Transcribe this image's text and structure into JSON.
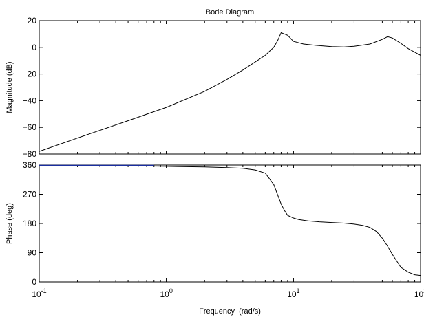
{
  "chart_data": [
    {
      "type": "line",
      "title": "Bode Diagram",
      "xlabel": "",
      "ylabel": "Magnitude (dB)",
      "xscale": "log",
      "xlim": [
        0.1,
        100
      ],
      "ylim": [
        -80,
        20
      ],
      "yticks": [
        20,
        0,
        -20,
        -40,
        -60,
        -80
      ],
      "ytick_labels": [
        "20",
        "0",
        "−20",
        "−40",
        "−60",
        "−80"
      ],
      "grid": false,
      "series": [
        {
          "color": "#000000",
          "x": [
            0.1,
            0.2,
            0.5,
            1,
            2,
            3,
            4,
            5,
            6,
            7,
            7.5,
            8,
            9,
            10,
            12,
            15,
            20,
            25,
            30,
            40,
            50,
            55,
            60,
            70,
            80,
            100
          ],
          "y": [
            -78,
            -68,
            -55,
            -45,
            -33,
            -24,
            -17,
            -11,
            -6,
            0,
            5,
            11,
            9,
            4.5,
            2.5,
            1.5,
            0.5,
            0.3,
            0.8,
            2.5,
            6,
            8,
            7,
            3,
            -1,
            -6
          ]
        }
      ]
    },
    {
      "type": "line",
      "title": "",
      "xlabel": "Frequency  (rad/s)",
      "ylabel": "Phase (deg)",
      "xscale": "log",
      "xlim": [
        0.1,
        100
      ],
      "ylim": [
        0,
        360
      ],
      "yticks": [
        360,
        270,
        180,
        90,
        0
      ],
      "ytick_labels": [
        "360",
        "270",
        "180",
        "90",
        "0"
      ],
      "xticks": [
        0.1,
        1,
        10,
        100
      ],
      "xtick_labels": [
        {
          "base": "10",
          "exp": "-1"
        },
        {
          "base": "10",
          "exp": "0"
        },
        {
          "base": "10",
          "exp": "1"
        },
        {
          "base": "10",
          "exp": "2"
        }
      ],
      "grid": false,
      "series": [
        {
          "color": "#000000",
          "x": [
            0.1,
            0.2,
            0.5,
            1,
            2,
            3,
            4,
            5,
            6,
            7,
            8,
            8.5,
            9,
            10,
            11,
            13,
            16,
            20,
            25,
            30,
            35,
            40,
            45,
            50,
            55,
            60,
            70,
            80,
            90,
            100
          ],
          "y": [
            358,
            358,
            358,
            356,
            354,
            352,
            350,
            345,
            335,
            300,
            240,
            220,
            205,
            197,
            192,
            188,
            185,
            183,
            181,
            178,
            174,
            168,
            155,
            135,
            110,
            85,
            45,
            30,
            22,
            20
          ]
        }
      ],
      "overlays": [
        {
          "color": "#1a2ea0",
          "x": [
            0.1,
            0.8
          ],
          "y": [
            359,
            359
          ]
        }
      ]
    }
  ]
}
